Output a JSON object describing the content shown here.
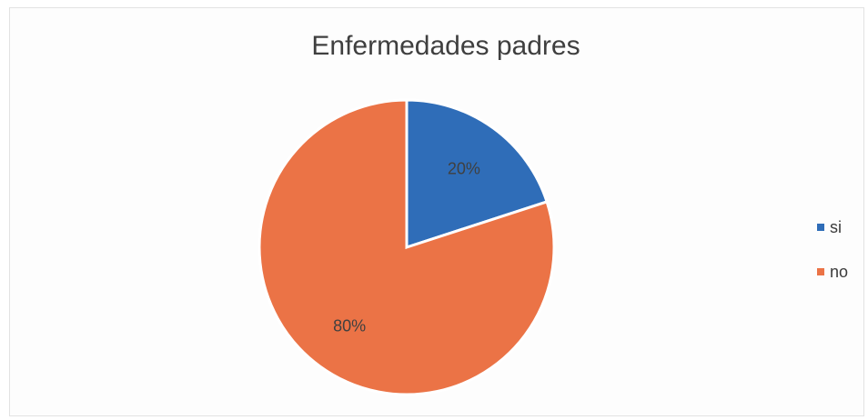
{
  "chart_data": {
    "type": "pie",
    "title": "Enfermedades padres",
    "categories": [
      "si",
      "no"
    ],
    "values": [
      20,
      80
    ],
    "labels": [
      "20%",
      "80%"
    ],
    "colors": [
      "#2f6db8",
      "#eb7346"
    ],
    "legend_position": "right"
  }
}
